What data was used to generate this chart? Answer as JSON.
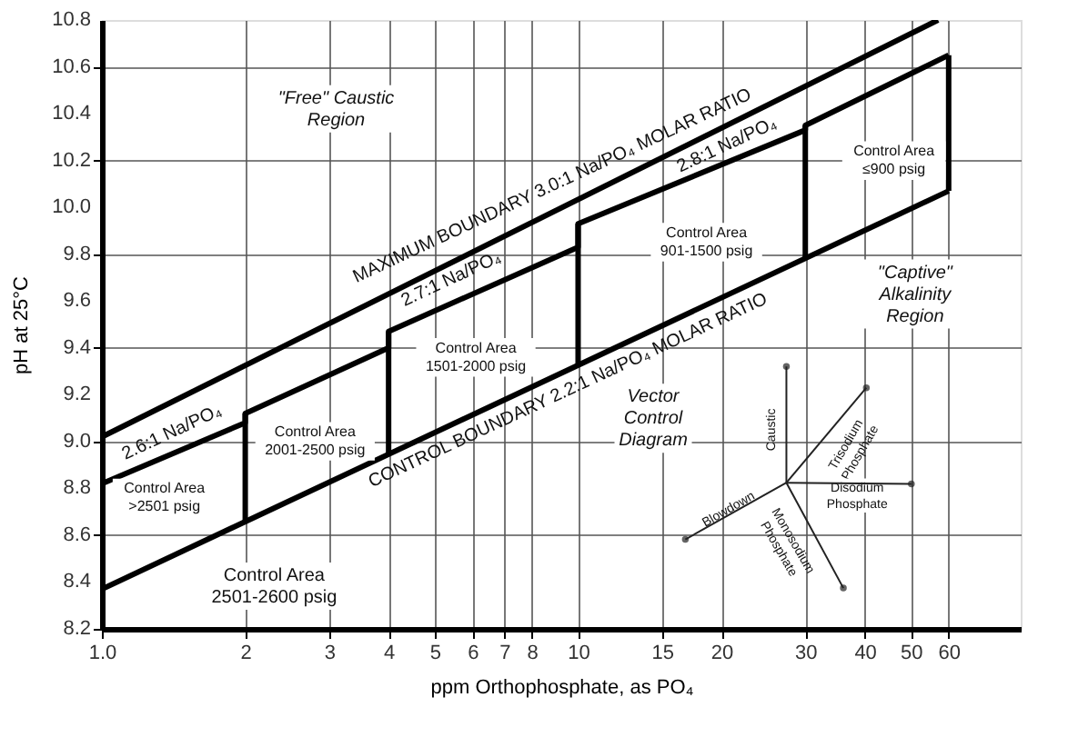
{
  "chart_data": {
    "type": "line",
    "xlabel": "ppm Orthophosphate, as PO₄",
    "ylabel": "pH at 25°C",
    "log": "x",
    "grid": true,
    "xlim": [
      1,
      85
    ],
    "xticks": [
      {
        "value": 1,
        "label": "1.0"
      },
      2,
      3,
      4,
      5,
      6,
      7,
      8,
      10,
      15,
      20,
      30,
      40,
      50,
      60
    ],
    "ylim": [
      8.2,
      10.8
    ],
    "yticks": [
      8.2,
      8.4,
      8.6,
      8.8,
      {
        "value": 9,
        "label": "9.0"
      },
      9.2,
      9.4,
      9.6,
      9.8,
      {
        "value": 10,
        "label": "10.0"
      },
      10.2,
      10.4,
      10.6,
      10.8
    ],
    "series": [
      {
        "color": "#000000",
        "x": [
          1,
          57
        ],
        "values": [
          9.02,
          10.8
        ]
      },
      {
        "color": "#000000",
        "x": [
          1,
          60
        ],
        "values": [
          8.37,
          10.07
        ]
      },
      {
        "color": "#000000",
        "x": [
          1,
          2,
          2,
          4,
          4,
          10,
          10,
          30,
          30,
          60
        ],
        "values": [
          8.82,
          9.08,
          9.12,
          9.4,
          9.47,
          9.83,
          9.93,
          10.33,
          10.35,
          10.65
        ]
      },
      {
        "color": "#000000",
        "x": [
          2,
          2
        ],
        "values": [
          8.66,
          9.12
        ]
      },
      {
        "color": "#000000",
        "x": [
          4,
          4
        ],
        "values": [
          8.95,
          9.47
        ]
      },
      {
        "color": "#000000",
        "x": [
          10,
          10
        ],
        "values": [
          9.33,
          9.93
        ]
      },
      {
        "color": "#000000",
        "x": [
          30,
          30
        ],
        "values": [
          9.78,
          10.35
        ]
      },
      {
        "color": "#000000",
        "x": [
          60,
          60
        ],
        "values": [
          10.07,
          10.65
        ]
      }
    ],
    "annotations": [
      "\"Free\" Caustic\nRegion",
      "MAXIMUM BOUNDARY  3.0:1 Na/PO₄ MOLAR RATIO",
      "2.6:1 Na/PO₄",
      "2.7:1 Na/PO₄",
      "2.8:1 Na/PO₄",
      "CONTROL BOUNDARY  2.2:1 Na/PO₄ MOLAR RATIO",
      "Control Area\n>2501 psig",
      "Control Area\n2001-2500 psig",
      "Control Area\n1501-2000 psig",
      "Control Area\n901-1500 psig",
      "Control Area\n≤900 psig",
      "Control Area\n2501-2600 psig",
      "\"Captive\"\nAlkalinity\nRegion",
      "Vector\nControl\nDiagram",
      "Caustic",
      "Trisodium\nPhosphate",
      "Disodium\nPhosphate",
      "Monosodium\nPhosphate",
      "Blowdown"
    ]
  }
}
